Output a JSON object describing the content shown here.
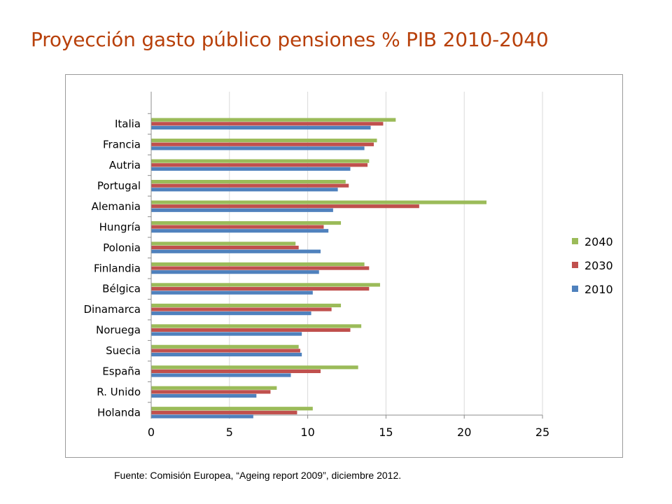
{
  "title": "Proyección gasto público pensiones % PIB 2010-2040",
  "source": "Fuente: Comisión Europea, “Ageing report 2009”, diciembre 2012.",
  "chart_data": {
    "type": "bar",
    "orientation": "horizontal",
    "categories": [
      "Italia",
      "Francia",
      "Autria",
      "Portugal",
      "Alemania",
      "Hungría",
      "Polonia",
      "Finlandia",
      "Bélgica",
      "Dinamarca",
      "Noruega",
      "Suecia",
      "España",
      "R. Unido",
      "Holanda"
    ],
    "series": [
      {
        "name": "2040",
        "color": "#9bbb59",
        "values": [
          15.6,
          14.4,
          13.9,
          12.4,
          21.4,
          12.1,
          9.2,
          13.6,
          14.6,
          12.1,
          13.4,
          9.4,
          13.2,
          8.0,
          10.3
        ]
      },
      {
        "name": "2030",
        "color": "#c0504d",
        "values": [
          14.8,
          14.2,
          13.8,
          12.6,
          17.1,
          11.0,
          9.4,
          13.9,
          13.9,
          11.5,
          12.7,
          9.5,
          10.8,
          7.6,
          9.3
        ]
      },
      {
        "name": "2010",
        "color": "#4f81bd",
        "values": [
          14.0,
          13.6,
          12.7,
          11.9,
          11.6,
          11.3,
          10.8,
          10.7,
          10.3,
          10.2,
          9.6,
          9.6,
          8.9,
          6.7,
          6.5
        ]
      }
    ],
    "x_ticks": [
      0,
      5,
      10,
      15,
      20,
      25
    ],
    "xlim": [
      0,
      25
    ],
    "grid": "vertical",
    "legend": "right"
  }
}
